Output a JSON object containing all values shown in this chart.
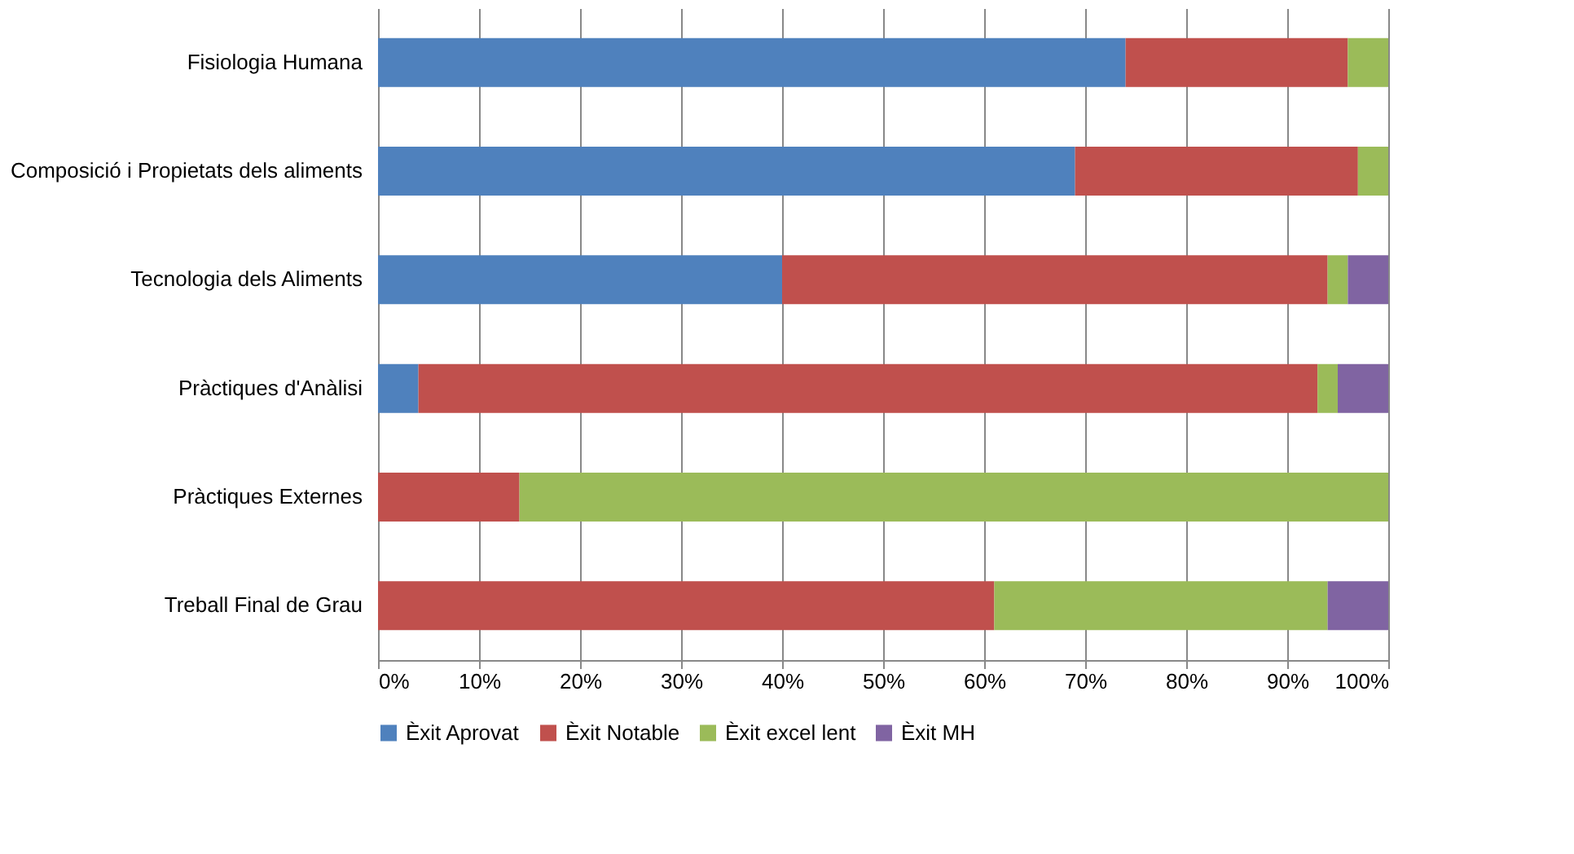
{
  "chart_data": {
    "type": "bar",
    "orientation": "horizontal",
    "stacked": true,
    "categories": [
      "Fisiologia Humana",
      "Composició i Propietats dels aliments",
      "Tecnologia dels Aliments",
      "Pràctiques d'Anàlisi",
      "Pràctiques Externes",
      "Treball Final de Grau"
    ],
    "series": [
      {
        "name": "Èxit Aprovat",
        "color": "#4f81bd",
        "values": [
          74,
          69,
          40,
          4,
          0,
          0
        ]
      },
      {
        "name": "Èxit Notable",
        "color": "#c0504d",
        "values": [
          22,
          28,
          54,
          89,
          14,
          61
        ]
      },
      {
        "name": "Èxit excel lent",
        "color": "#9bbb59",
        "values": [
          4,
          3,
          2,
          2,
          86,
          33
        ]
      },
      {
        "name": "Èxit MH",
        "color": "#8064a2",
        "values": [
          0,
          0,
          4,
          5,
          0,
          6
        ]
      }
    ],
    "xlim": [
      0,
      100
    ],
    "xticks": [
      {
        "value": 0,
        "label": "0%"
      },
      {
        "value": 10,
        "label": "10%"
      },
      {
        "value": 20,
        "label": "20%"
      },
      {
        "value": 30,
        "label": "30%"
      },
      {
        "value": 40,
        "label": "40%"
      },
      {
        "value": 50,
        "label": "50%"
      },
      {
        "value": 60,
        "label": "60%"
      },
      {
        "value": 70,
        "label": "70%"
      },
      {
        "value": 80,
        "label": "80%"
      },
      {
        "value": 90,
        "label": "90%"
      },
      {
        "value": 100,
        "label": "100%"
      }
    ],
    "grid": "x",
    "legend": "bottom"
  }
}
